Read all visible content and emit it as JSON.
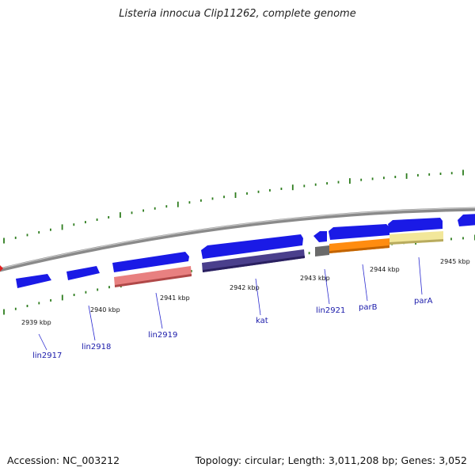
{
  "title": "Listeria innocua Clip11262, complete genome",
  "footer": {
    "accession": "Accession: NC_003212",
    "topology": "Topology: circular; Length: 3,011,208 bp; Genes: 3,052"
  },
  "colors": {
    "backbone": "#8a8a8a",
    "forward_gene": "#1a1ae6",
    "tick": "#2e7d1e",
    "label_line": "#2a2ad0",
    "red_marker": "#e02020"
  },
  "ticks": [
    {
      "label": "2939 kbp"
    },
    {
      "label": "2940 kbp"
    },
    {
      "label": "2941 kbp"
    },
    {
      "label": "2942 kbp"
    },
    {
      "label": "2943 kbp"
    },
    {
      "label": "2944 kbp"
    },
    {
      "label": "2945 kbp"
    }
  ],
  "gene_labels": [
    {
      "label": "lin2917"
    },
    {
      "label": "lin2918"
    },
    {
      "label": "lin2919"
    },
    {
      "label": "kat"
    },
    {
      "label": "lin2921"
    },
    {
      "label": "parB"
    },
    {
      "label": "parA"
    }
  ],
  "feature_colors": {
    "lin2919": "#e88080",
    "kat": "#4a3f8c",
    "lin2921": "#6a6a6a",
    "parB": "#ff8c10",
    "parA": "#f2e79a"
  }
}
